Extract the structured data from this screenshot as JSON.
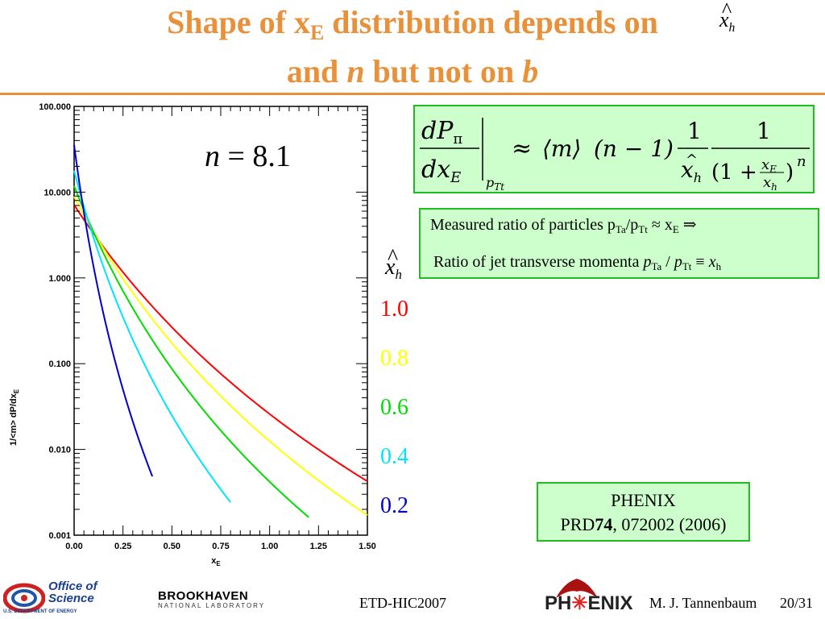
{
  "slide": {
    "title_line1_a": "Shape of x",
    "title_line1_sub": "E",
    "title_line1_b": " distribution depends on",
    "title_line2_a": "and ",
    "title_line2_n": "n",
    "title_line2_b": " but not on ",
    "title_line2_bvar": "b",
    "xhat_symbol": "x",
    "xhat_sub": "h",
    "hat_char": "^"
  },
  "plot": {
    "n_value_label": "n = 8.1",
    "ylabel": "1/<m> dP/dx",
    "ylabel_sub": "E",
    "xlabel": "x",
    "xlabel_sub": "E",
    "y_tick_labels": [
      "100.000",
      "10.000",
      "1.000",
      "0.100",
      "0.010",
      "0.001"
    ],
    "x_tick_labels": [
      "0.00",
      "0.25",
      "0.50",
      "0.75",
      "1.00",
      "1.25",
      "1.50"
    ]
  },
  "chart_data": {
    "type": "line",
    "xlabel": "xE",
    "ylabel": "1/<m> dP/dxE",
    "xlim": [
      0,
      1.5
    ],
    "ylim": [
      0.001,
      100
    ],
    "y_scale": "log",
    "n": 8.1,
    "series": [
      {
        "name": "1.0",
        "color": "#ff0000",
        "xh": 1.0,
        "xmax": 1.5
      },
      {
        "name": "0.8",
        "color": "#ffff00",
        "xh": 0.8,
        "xmax": 1.5
      },
      {
        "name": "0.6",
        "color": "#00dd00",
        "xh": 0.6,
        "xmax": 1.2
      },
      {
        "name": "0.4",
        "color": "#00e5ff",
        "xh": 0.4,
        "xmax": 0.8
      },
      {
        "name": "0.2",
        "color": "#0000cc",
        "xh": 0.2,
        "xmax": 0.4
      }
    ]
  },
  "legend": {
    "values": [
      {
        "label": "1.0",
        "color": "#ff0000"
      },
      {
        "label": "0.8",
        "color": "#ffff00"
      },
      {
        "label": "0.6",
        "color": "#00dd00"
      },
      {
        "label": "0.4",
        "color": "#00e5ff"
      },
      {
        "label": "0.2",
        "color": "#0000cc"
      }
    ]
  },
  "formula": {
    "lhs_num": "dP",
    "lhs_num_sub": "π",
    "lhs_den": "dx",
    "lhs_den_sub": "E",
    "eval_sub": "p",
    "eval_sub_sub": "Tt",
    "approx": "≈",
    "mean_m": "⟨m⟩",
    "n_minus_1": "(n − 1)",
    "one": "1",
    "xh": "x",
    "xh_sub": "h",
    "denom_open": "(1 +",
    "frac_num": "x",
    "frac_num_sub": "E",
    "denom_close": ")",
    "exp": "n"
  },
  "ratio_box": {
    "line1_a": "Measured ratio of particles p",
    "line1_sub1": "Ta",
    "line1_b": "/p",
    "line1_sub2": "Tt",
    "line1_c": " ≈ x",
    "line1_sub3": "E",
    "line1_arrow": " ⇒",
    "line2_a": "Ratio of jet transverse momenta ",
    "line2_p": "p",
    "line2_sub1": "Ta",
    "line2_slash": " / ",
    "line2_sub2": "Tt",
    "line2_equiv": " ≡ ",
    "line2_x": "x",
    "line2_sub3": "h"
  },
  "reference": {
    "line1": "PHENIX",
    "line2_a": "PRD",
    "line2_vol": "74",
    "line2_b": ", 072002 (2006)"
  },
  "footer": {
    "office_line1": "Office of",
    "office_line2": "Science",
    "office_line3": "U.S. DEPARTMENT OF ENERGY",
    "bnl_line1": "BROOKHAVEN",
    "bnl_line2": "NATIONAL LABORATORY",
    "conference": "ETD-HIC2007",
    "phenix_logo_a": "PH",
    "phenix_logo_b": "ENIX",
    "author": "M. J. Tannenbaum",
    "page": "20/31"
  }
}
